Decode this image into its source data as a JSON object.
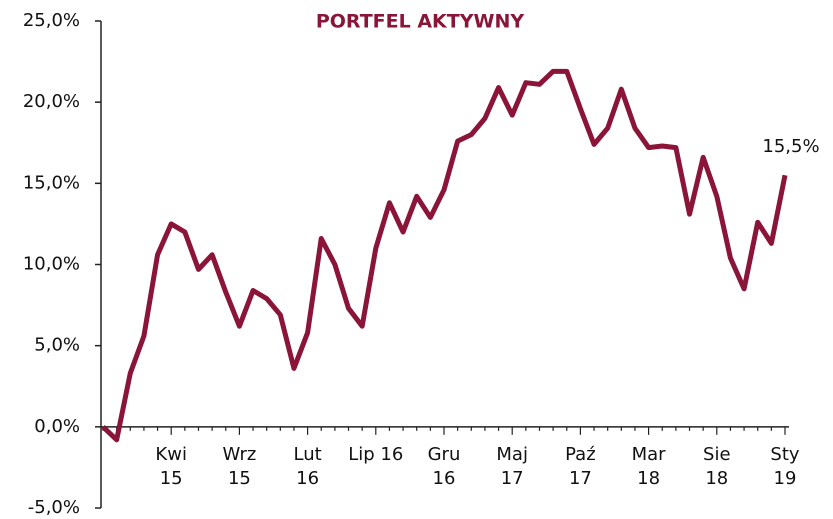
{
  "chart_data": {
    "type": "line",
    "title": "PORTFEL AKTYWNY",
    "categories": [
      null,
      null,
      null,
      null,
      null,
      "Kwi\n15",
      null,
      null,
      null,
      null,
      "Wrz\n15",
      null,
      null,
      null,
      null,
      "Lut\n16",
      null,
      null,
      null,
      null,
      "Lip 16",
      null,
      null,
      null,
      null,
      "Gru\n16",
      null,
      null,
      null,
      null,
      "Maj\n17",
      null,
      null,
      null,
      null,
      "Paź\n17",
      null,
      null,
      null,
      null,
      "Mar\n18",
      null,
      null,
      null,
      null,
      "Sie\n18",
      null,
      null,
      null,
      null,
      "Sty\n19"
    ],
    "series": [
      {
        "color": "#8a1538",
        "values": [
          0,
          -0.8,
          3.3,
          5.6,
          10.6,
          12.5,
          12.0,
          9.7,
          10.6,
          8.3,
          6.2,
          8.4,
          7.9,
          6.9,
          3.6,
          5.8,
          11.6,
          10.0,
          7.3,
          6.2,
          11.0,
          13.8,
          12.0,
          14.2,
          12.9,
          14.6,
          17.6,
          18.0,
          19.0,
          20.9,
          19.2,
          21.2,
          21.1,
          21.9,
          21.9,
          19.6,
          17.4,
          18.4,
          20.8,
          18.4,
          17.2,
          17.3,
          17.2,
          13.1,
          16.6,
          14.2,
          10.4,
          8.5,
          12.6,
          11.3,
          15.5
        ],
        "value_labels": [
          null,
          null,
          null,
          null,
          null,
          null,
          null,
          null,
          null,
          null,
          null,
          null,
          null,
          null,
          null,
          null,
          null,
          null,
          null,
          null,
          null,
          null,
          null,
          null,
          null,
          null,
          null,
          null,
          null,
          null,
          null,
          null,
          null,
          null,
          null,
          null,
          null,
          null,
          null,
          null,
          null,
          null,
          null,
          null,
          null,
          null,
          null,
          null,
          null,
          null,
          "15,5%"
        ]
      }
    ],
    "ylim": [
      -5,
      25
    ],
    "yticks": [
      {
        "value": -5,
        "label": "-5,0%"
      },
      {
        "value": 0,
        "label": "0,0%"
      },
      {
        "value": 5,
        "label": "5,0%"
      },
      {
        "value": 10,
        "label": "10,0%"
      },
      {
        "value": 15,
        "label": "15,0%"
      },
      {
        "value": 20,
        "label": "20,0%"
      },
      {
        "value": 25,
        "label": "25,0%"
      }
    ],
    "grid": false
  }
}
